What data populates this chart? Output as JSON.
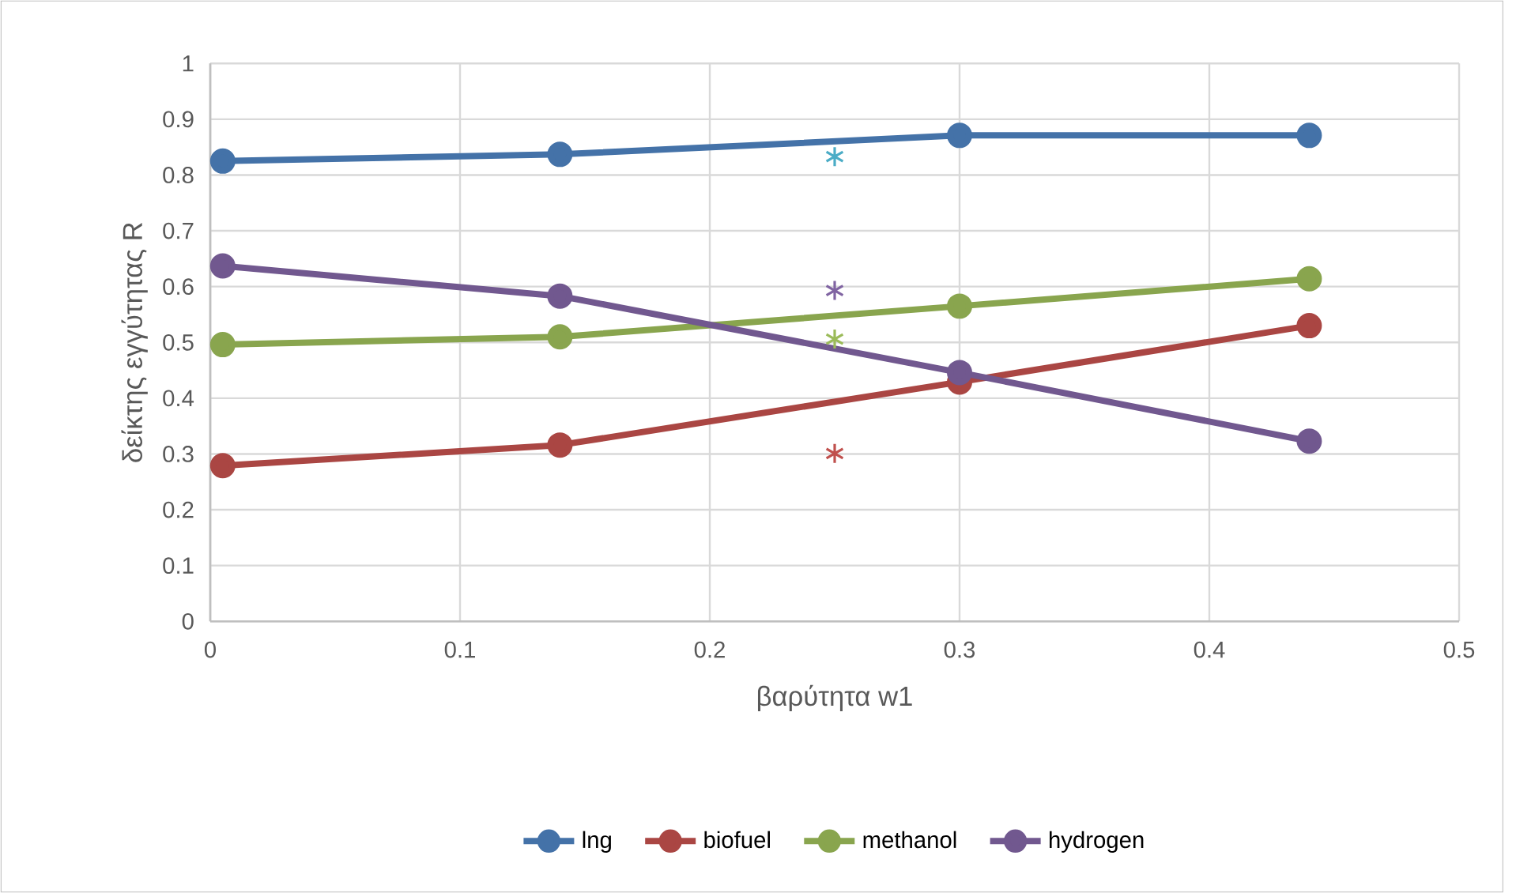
{
  "chart_data": {
    "type": "line",
    "xlabel": "βαρύτητα w1",
    "ylabel": "δείκτης εγγύτητας R",
    "xlim": [
      0,
      0.5
    ],
    "xticks": [
      0,
      0.1,
      0.2,
      0.3,
      0.4,
      0.5
    ],
    "ylim": [
      0,
      1
    ],
    "yticks": [
      0,
      0.1,
      0.2,
      0.3,
      0.4,
      0.5,
      0.6,
      0.7,
      0.8,
      0.9,
      1
    ],
    "grid": true,
    "legend": "bottom",
    "marker": "circle",
    "series": [
      {
        "name": "lng",
        "color": "#4472a8",
        "x": [
          0.005,
          0.14,
          0.3,
          0.44
        ],
        "values": [
          0.825,
          0.837,
          0.871,
          0.871
        ]
      },
      {
        "name": "biofuel",
        "color": "#aa4643",
        "x": [
          0.005,
          0.14,
          0.3,
          0.44
        ],
        "values": [
          0.279,
          0.316,
          0.429,
          0.53
        ]
      },
      {
        "name": "methanol",
        "color": "#89a54e",
        "x": [
          0.005,
          0.14,
          0.3,
          0.44
        ],
        "values": [
          0.496,
          0.51,
          0.565,
          0.614
        ]
      },
      {
        "name": "hydrogen",
        "color": "#71588f",
        "x": [
          0.005,
          0.14,
          0.3,
          0.44
        ],
        "values": [
          0.637,
          0.583,
          0.446,
          0.323
        ]
      },
      {
        "type": "scatter",
        "marker": "cross",
        "color": "#4bacc6",
        "x": [
          0.25
        ],
        "values": [
          0.833
        ]
      },
      {
        "type": "scatter",
        "marker": "cross",
        "color": "#c0504d",
        "x": [
          0.25
        ],
        "values": [
          0.301
        ]
      },
      {
        "type": "scatter",
        "marker": "cross",
        "color": "#9bbb59",
        "x": [
          0.25
        ],
        "values": [
          0.506
        ]
      },
      {
        "type": "scatter",
        "marker": "cross",
        "color": "#8064a2",
        "x": [
          0.25
        ],
        "values": [
          0.593
        ]
      }
    ]
  }
}
